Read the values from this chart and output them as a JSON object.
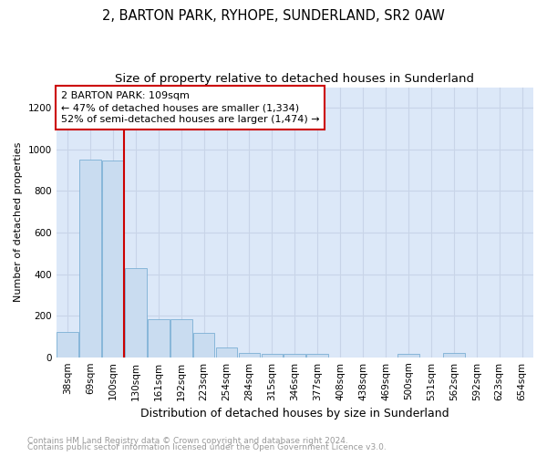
{
  "title": "2, BARTON PARK, RYHOPE, SUNDERLAND, SR2 0AW",
  "subtitle": "Size of property relative to detached houses in Sunderland",
  "xlabel": "Distribution of detached houses by size in Sunderland",
  "ylabel": "Number of detached properties",
  "categories": [
    "38sqm",
    "69sqm",
    "100sqm",
    "130sqm",
    "161sqm",
    "192sqm",
    "223sqm",
    "254sqm",
    "284sqm",
    "315sqm",
    "346sqm",
    "377sqm",
    "408sqm",
    "438sqm",
    "469sqm",
    "500sqm",
    "531sqm",
    "562sqm",
    "592sqm",
    "623sqm",
    "654sqm"
  ],
  "values": [
    120,
    950,
    945,
    430,
    185,
    185,
    115,
    45,
    20,
    15,
    15,
    15,
    0,
    0,
    0,
    15,
    0,
    20,
    0,
    0,
    0
  ],
  "bar_color": "#c9dcf0",
  "bar_edge_color": "#7bafd4",
  "red_line_x": 2.5,
  "annotation_title": "2 BARTON PARK: 109sqm",
  "annotation_line1": "← 47% of detached houses are smaller (1,334)",
  "annotation_line2": "52% of semi-detached houses are larger (1,474) →",
  "annotation_box_color": "#ffffff",
  "annotation_box_edge": "#cc0000",
  "red_line_color": "#cc0000",
  "ylim": [
    0,
    1300
  ],
  "yticks": [
    0,
    200,
    400,
    600,
    800,
    1000,
    1200
  ],
  "grid_color": "#c8d4e8",
  "bg_color": "#dce8f8",
  "footnote1": "Contains HM Land Registry data © Crown copyright and database right 2024.",
  "footnote2": "Contains public sector information licensed under the Open Government Licence v3.0.",
  "title_fontsize": 10.5,
  "subtitle_fontsize": 9.5,
  "annotation_fontsize": 8,
  "ylabel_fontsize": 8,
  "xlabel_fontsize": 9,
  "footnote_fontsize": 6.5,
  "tick_fontsize": 7.5
}
